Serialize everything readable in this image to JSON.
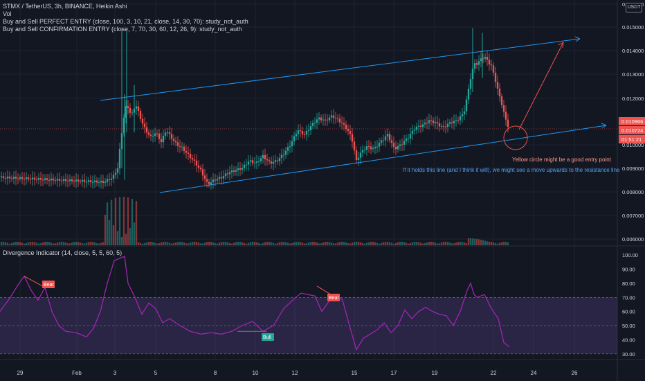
{
  "legend": {
    "symbol_line": "STMX / TetherUS, 3h, BINANCE, Heikin Ashi",
    "vol": "Vol",
    "indicator1": "Buy and Sell PERFECT ENTRY (close, 100, 3, 10, 21, close, 14, 30, 70): study_not_auth",
    "indicator2": "Buy and Sell CONFIRMATION ENTRY (close, 7, 70, 30, 60, 12, 26, 9): study_not_auth"
  },
  "currency_button": "USDT",
  "price_axis": {
    "ticks": [
      "0.016000",
      "0.015000",
      "0.014000",
      "0.013000",
      "0.012000",
      "0.010000",
      "0.009000",
      "0.008000",
      "0.007000",
      "0.006000"
    ],
    "last_price": "0.010966",
    "current_price": "0.010724",
    "countdown": "01:51:21"
  },
  "annotations": {
    "entry_note": "Yellow circle might be a good entry point",
    "holds_note": "If it holds this line (and I think it will), we might see a move upwards to the resistance line"
  },
  "divergence": {
    "title": "Divergence Indicator (14, close, 5, 5, 60, 5)",
    "ticks": [
      "100.00",
      "90.00",
      "80.00",
      "70.00",
      "60.00",
      "50.00",
      "40.00",
      "30.00"
    ],
    "labels": {
      "bear1": "Bear",
      "bear2": "Bear",
      "bull": "Bull"
    }
  },
  "time_axis": [
    "29",
    "Feb",
    "3",
    "5",
    "8",
    "10",
    "12",
    "15",
    "17",
    "19",
    "22",
    "24",
    "26"
  ],
  "colors": {
    "bg": "#131722",
    "up": "#26a69a",
    "down": "#ef5350",
    "rsi": "#9c27b0",
    "band": "#7e57c2",
    "trend": "#2196f3",
    "text": "#d1d4dc",
    "grid": "#1f2330"
  }
}
